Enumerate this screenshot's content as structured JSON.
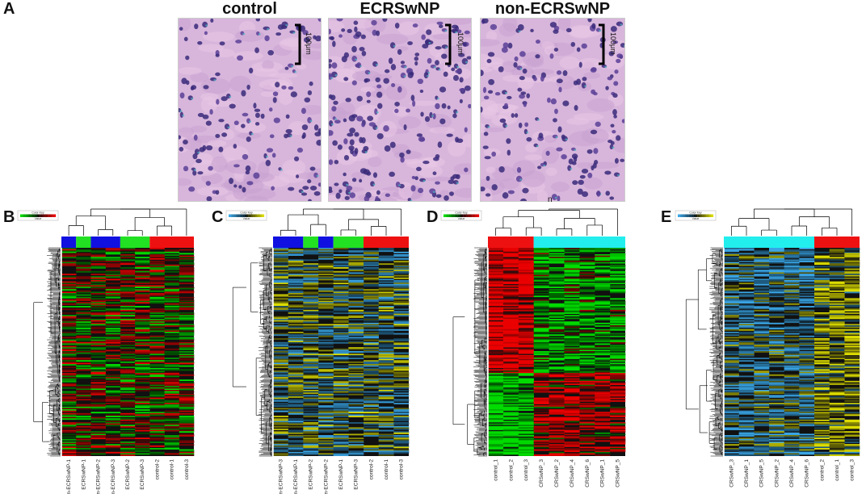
{
  "figure": {
    "panel_a": {
      "letter": "A",
      "images": [
        {
          "title": "control",
          "scale_label": "100μm"
        },
        {
          "title": "ECRSwNP",
          "scale_label": "100μm"
        },
        {
          "title": "non-ECRSwNP",
          "scale_label": "100μm"
        }
      ],
      "stray_mark": "n"
    },
    "heatmaps": [
      {
        "letter": "B",
        "key_title": "Color Key",
        "key_xlabel": "Value",
        "scheme": "green-red",
        "group_colors": [
          "#1010e0",
          "#22e022",
          "#1010e0",
          "#22e022",
          "#ee1111"
        ],
        "group_spans": [
          1,
          1,
          2,
          2,
          3
        ],
        "columns": [
          "non-ECRSwNP-1",
          "ECRSwNP-1",
          "non-ECRSwNP-2",
          "non-ECRSwNP-3",
          "ECRSwNP-2",
          "ECRSwNP-3",
          "control-2",
          "control-1",
          "control-3"
        ]
      },
      {
        "letter": "C",
        "key_title": "Color Key",
        "key_xlabel": "Value",
        "scheme": "blue-yellow",
        "group_colors": [
          "#1010e0",
          "#22e022",
          "#1010e0",
          "#22e022",
          "#ee1111"
        ],
        "group_spans": [
          2,
          1,
          1,
          2,
          3
        ],
        "columns": [
          "non-ECRSwNP-3",
          "non-ECRSwNP-1",
          "ECRSwNP-2",
          "non-ECRSwNP-2",
          "ECRSwNP-1",
          "ECRSwNP-3",
          "control-2",
          "control-1",
          "control-3"
        ]
      },
      {
        "letter": "D",
        "key_title": "Color Key",
        "key_xlabel": "Value",
        "scheme": "green-red",
        "group_colors": [
          "#ee1111",
          "#22eeee"
        ],
        "group_spans": [
          3,
          6
        ],
        "columns": [
          "control_1",
          "control_2",
          "control_3",
          "CRSwNP_3",
          "CRSwNP_2",
          "CRSwNP_4",
          "CRSwNP_6",
          "CRSwNP_1",
          "CRSwNP_5"
        ]
      },
      {
        "letter": "E",
        "key_title": "Color Key",
        "key_xlabel": "Value",
        "scheme": "blue-yellow",
        "group_colors": [
          "#22eeee",
          "#ee1111"
        ],
        "group_spans": [
          6,
          3
        ],
        "columns": [
          "CRSwNP_3",
          "CRSwNP_1",
          "CRSwNP_5",
          "CRSwNP_2",
          "CRSwNP_4",
          "CRSwNP_6",
          "control_2",
          "control_1",
          "control_3"
        ]
      }
    ]
  }
}
